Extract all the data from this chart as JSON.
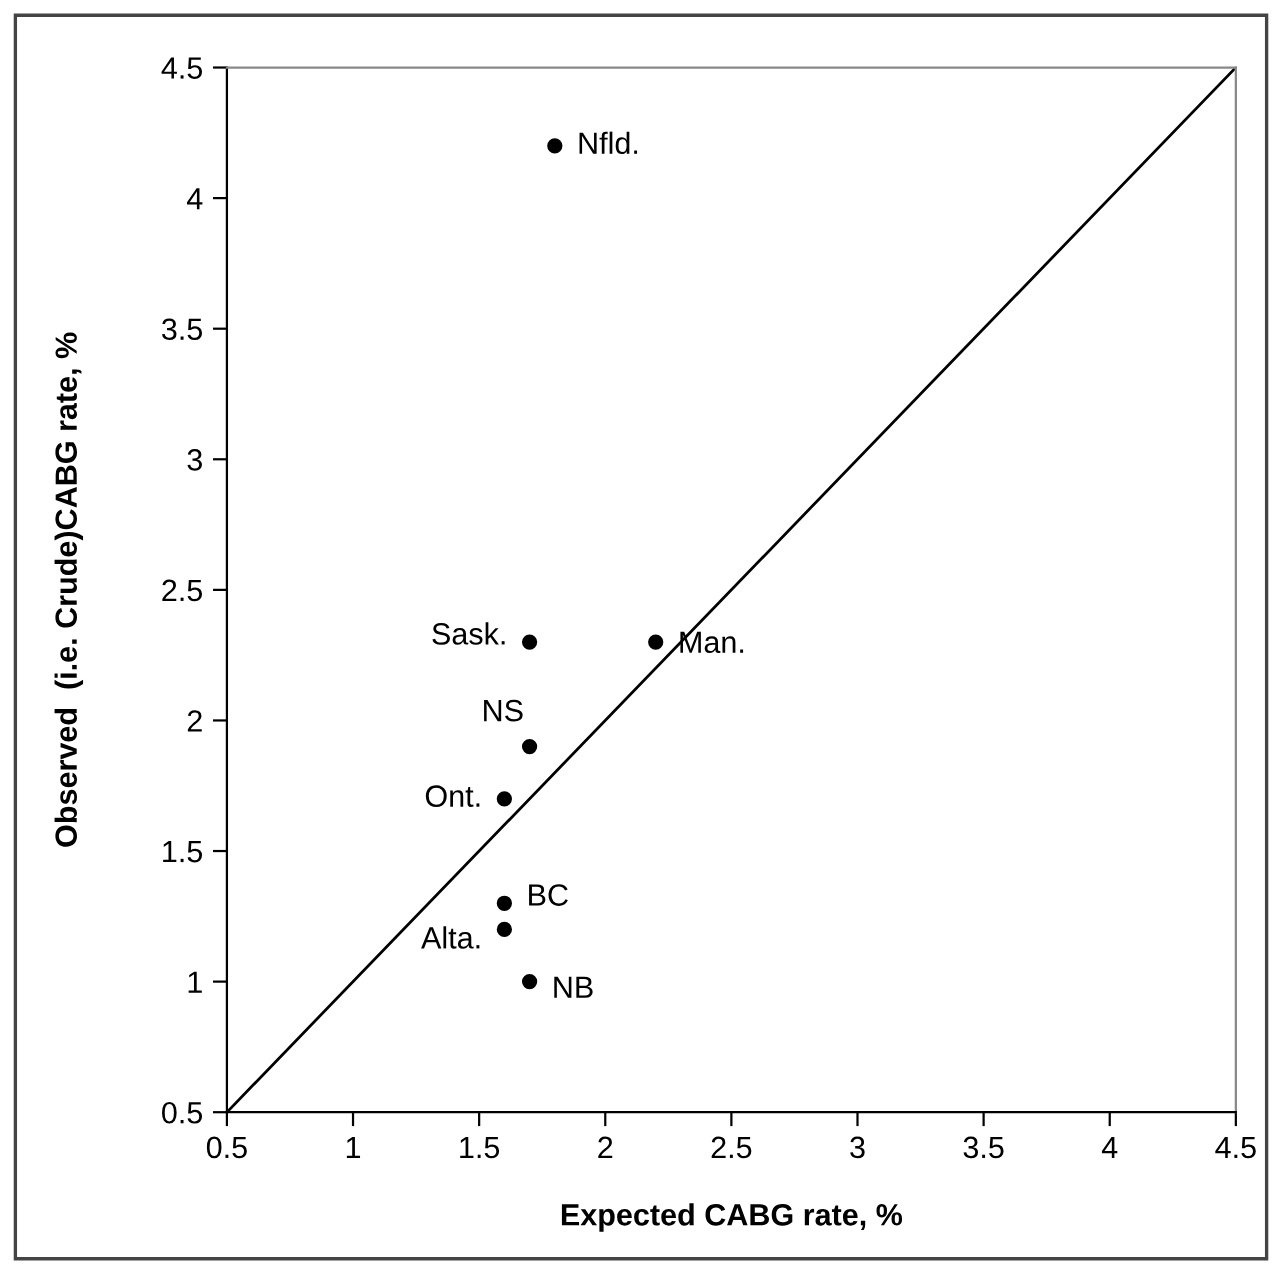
{
  "chart_data": {
    "type": "scatter",
    "xlabel": "Expected CABG rate, %",
    "ylabel": "Observed  (i.e. Crude)CABG rate, %",
    "series": [
      {
        "color": "#000000",
        "marker": "circle",
        "x": [
          1.8,
          1.7,
          2.2,
          1.7,
          1.6,
          1.6,
          1.6,
          1.7
        ],
        "values": [
          4.2,
          2.3,
          2.3,
          1.9,
          1.7,
          1.3,
          1.2,
          1.0
        ]
      },
      {
        "type": "line",
        "color": "#000000",
        "marker": "none",
        "line_style": "solid",
        "x": [
          0.5,
          4.5
        ],
        "values": [
          0.5,
          4.5
        ]
      }
    ],
    "annotations": [
      {
        "text": "Nfld.",
        "x": 1.8,
        "y": 4.2
      },
      {
        "text": "Sask.",
        "x": 1.7,
        "y": 2.3
      },
      {
        "text": "Man.",
        "x": 2.2,
        "y": 2.3
      },
      {
        "text": "NS",
        "x": 1.7,
        "y": 1.9
      },
      {
        "text": "Ont.",
        "x": 1.6,
        "y": 1.7
      },
      {
        "text": "BC",
        "x": 1.6,
        "y": 1.3
      },
      {
        "text": "Alta.",
        "x": 1.6,
        "y": 1.2
      },
      {
        "text": "NB",
        "x": 1.7,
        "y": 1.0
      }
    ],
    "xlim": [
      0.5,
      4.5
    ],
    "ylim": [
      0.5,
      4.5
    ],
    "xticks": [
      0.5,
      1,
      1.5,
      2,
      2.5,
      3,
      3.5,
      4,
      4.5
    ],
    "yticks": [
      0.5,
      1,
      1.5,
      2,
      2.5,
      3,
      3.5,
      4,
      4.5
    ],
    "grid": false,
    "legend": false
  }
}
